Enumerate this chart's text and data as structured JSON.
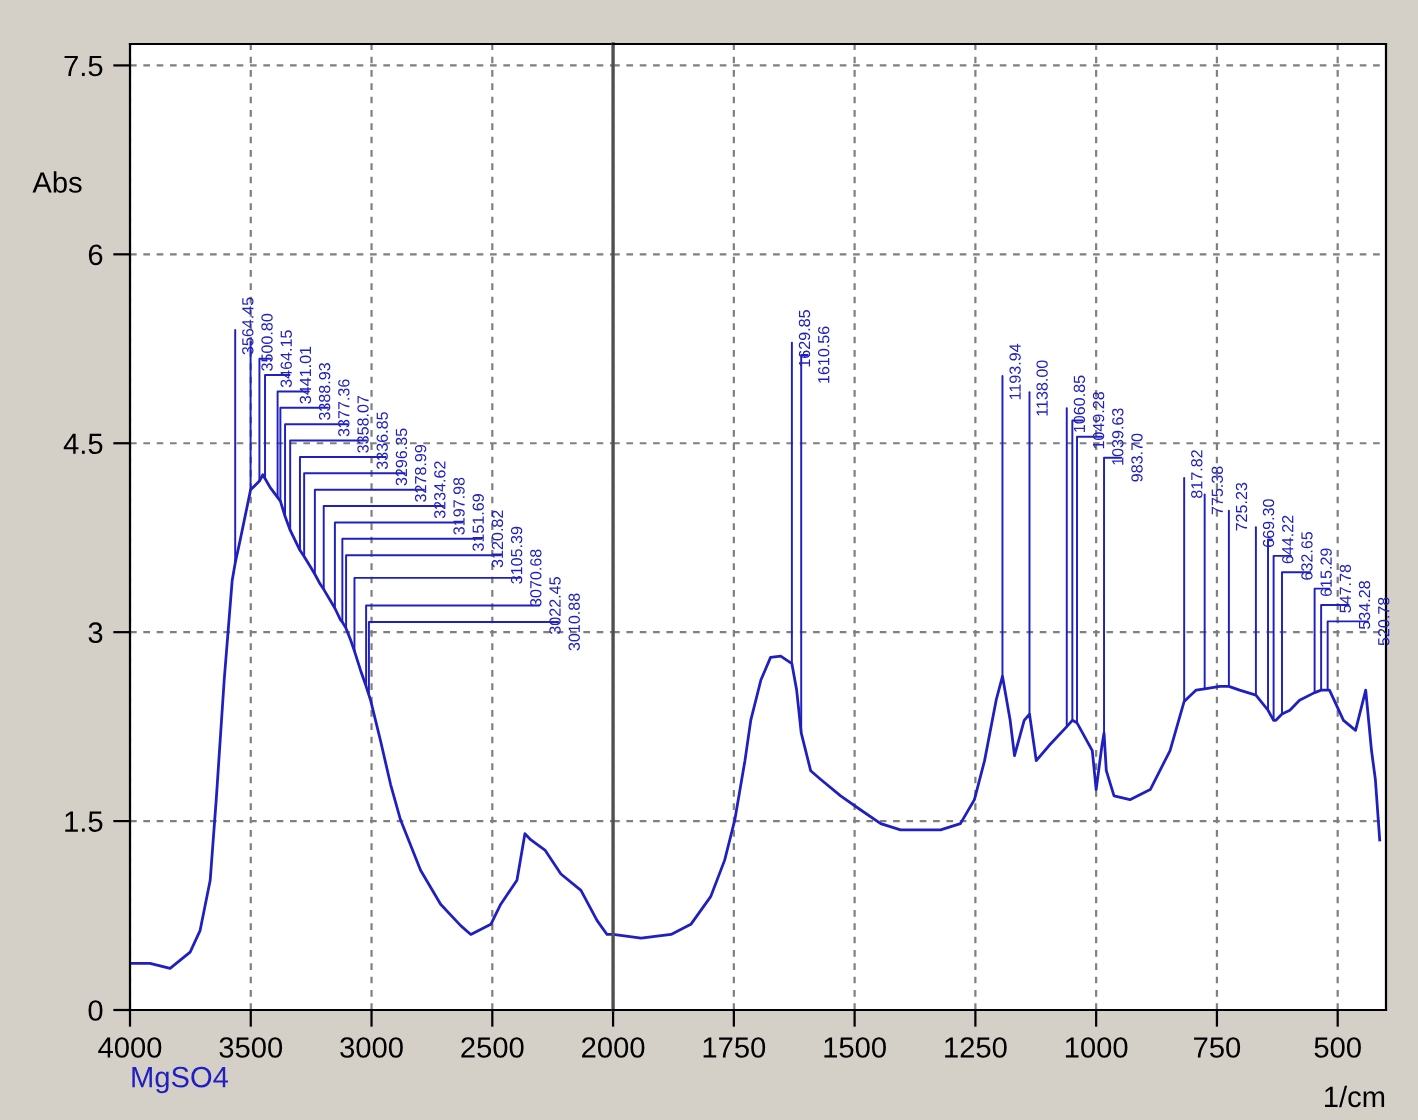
{
  "chart_data": [
    {
      "type": "line",
      "ylabel": "Abs",
      "x": [
        4000,
        3917,
        3834,
        3751,
        3710,
        3668,
        3643,
        3610,
        3577,
        3564.45,
        3544,
        3500.8,
        3464.15,
        3450,
        3441.01,
        3420,
        3388.93,
        3377.36,
        3358.07,
        3336.85,
        3296.35,
        3278.99,
        3253,
        3234.62,
        3212,
        3197.98,
        3170,
        3151.69,
        3129,
        3120.82,
        3105.39,
        3087,
        3070.68,
        3046,
        3022.45,
        3010.88,
        3004,
        2963,
        2921,
        2880,
        2797,
        2714,
        2631,
        2589,
        2506,
        2465,
        2398,
        2365,
        2340,
        2282,
        2216,
        2133,
        2066,
        2025,
        2000
      ],
      "series": [
        {
          "color": "#2020c0",
          "values": [
            0.37,
            0.37,
            0.33,
            0.46,
            0.63,
            1.03,
            1.67,
            2.62,
            3.41,
            3.55,
            3.73,
            4.13,
            4.2,
            4.25,
            4.22,
            4.15,
            4.07,
            4.04,
            3.92,
            3.81,
            3.65,
            3.6,
            3.52,
            3.46,
            3.38,
            3.34,
            3.25,
            3.19,
            3.1,
            3.08,
            3.03,
            2.94,
            2.85,
            2.7,
            2.57,
            2.5,
            2.46,
            2.14,
            1.79,
            1.51,
            1.11,
            0.84,
            0.67,
            0.6,
            0.68,
            0.84,
            1.03,
            1.4,
            1.35,
            1.27,
            1.08,
            0.95,
            0.71,
            0.6,
            0.6
          ]
        }
      ],
      "xlim": [
        4000,
        2000
      ],
      "ylim": [
        0,
        7.67
      ],
      "xticks": [
        4000,
        3500,
        3000,
        2500
      ],
      "yticks": [
        0,
        1.5,
        3,
        4.5,
        6,
        7.5
      ],
      "grid": true,
      "annotations": [
        "MgSO4",
        {
          "text": "3564.45",
          "x": 3564.45,
          "y": 3.55
        },
        {
          "text": "3500.80",
          "x": 3500.8,
          "y": 4.13
        },
        {
          "text": "3464.15",
          "x": 3464.15,
          "y": 4.2
        },
        {
          "text": "3441.01",
          "x": 3441.01,
          "y": 4.22
        },
        {
          "text": "3388.93",
          "x": 3388.93,
          "y": 4.07
        },
        {
          "text": "3377.36",
          "x": 3377.36,
          "y": 4.04
        },
        {
          "text": "3358.07",
          "x": 3358.07,
          "y": 3.92
        },
        {
          "text": "3336.85",
          "x": 3336.85,
          "y": 3.81
        },
        {
          "text": "3296.35",
          "x": 3296.35,
          "y": 3.65
        },
        {
          "text": "3278.99",
          "x": 3278.99,
          "y": 3.6
        },
        {
          "text": "3234.62",
          "x": 3234.62,
          "y": 3.46
        },
        {
          "text": "3197.98",
          "x": 3197.98,
          "y": 3.34
        },
        {
          "text": "3151.69",
          "x": 3151.69,
          "y": 3.19
        },
        {
          "text": "3120.82",
          "x": 3120.82,
          "y": 3.08
        },
        {
          "text": "3105.39",
          "x": 3105.39,
          "y": 3.03
        },
        {
          "text": "3070.68",
          "x": 3070.68,
          "y": 2.85
        },
        {
          "text": "3022.45",
          "x": 3022.45,
          "y": 2.57
        },
        {
          "text": "3010.88",
          "x": 3010.88,
          "y": 2.5
        }
      ]
    },
    {
      "type": "line",
      "xlabel": "1/cm",
      "x": [
        2000,
        1942,
        1880,
        1839,
        1798,
        1769,
        1748,
        1727,
        1715,
        1694,
        1674,
        1653,
        1629.85,
        1620,
        1610.56,
        1591,
        1570,
        1529,
        1488,
        1446,
        1405,
        1322,
        1281,
        1252,
        1231,
        1207,
        1193.94,
        1178,
        1169,
        1149,
        1138,
        1124,
        1095,
        1060.85,
        1049.28,
        1039.63,
        1008,
        1000,
        988,
        983.7,
        979,
        963,
        930,
        888,
        847,
        817.82,
        793,
        775.38,
        744,
        725.23,
        703,
        669.3,
        661,
        644.22,
        632.65,
        628,
        615.29,
        599,
        579,
        547.78,
        534.28,
        520.78,
        517,
        488,
        463,
        442,
        430,
        422,
        413
      ],
      "series": [
        {
          "color": "#2020c0",
          "values": [
            0.6,
            0.57,
            0.6,
            0.68,
            0.9,
            1.19,
            1.51,
            1.98,
            2.3,
            2.62,
            2.8,
            2.81,
            2.75,
            2.54,
            2.2,
            1.9,
            1.83,
            1.7,
            1.59,
            1.48,
            1.43,
            1.43,
            1.48,
            1.67,
            1.98,
            2.46,
            2.65,
            2.3,
            2.02,
            2.3,
            2.35,
            1.98,
            2.11,
            2.25,
            2.3,
            2.28,
            2.06,
            1.75,
            2.1,
            2.2,
            1.9,
            1.7,
            1.67,
            1.75,
            2.06,
            2.45,
            2.54,
            2.55,
            2.57,
            2.57,
            2.54,
            2.5,
            2.46,
            2.38,
            2.3,
            2.3,
            2.35,
            2.38,
            2.46,
            2.52,
            2.54,
            2.54,
            2.54,
            2.3,
            2.22,
            2.54,
            2.06,
            1.83,
            1.35
          ]
        }
      ],
      "xlim": [
        2000,
        400
      ],
      "ylim": [
        0,
        7.67
      ],
      "xticks": [
        2000,
        1750,
        1500,
        1250,
        1000,
        750,
        500
      ],
      "yticks": [
        0,
        1.5,
        3,
        4.5,
        6,
        7.5
      ],
      "tick_labels": "x",
      "grid": true,
      "annotations": [
        {
          "text": "1629.85",
          "x": 1629.85,
          "y": 2.75
        },
        {
          "text": "1610.56",
          "x": 1610.56,
          "y": 2.2
        },
        {
          "text": "1193.94",
          "x": 1193.94,
          "y": 2.65
        },
        {
          "text": "1138.00",
          "x": 1138.0,
          "y": 2.35
        },
        {
          "text": "1060.85",
          "x": 1060.85,
          "y": 2.25
        },
        {
          "text": "1049.28",
          "x": 1049.28,
          "y": 2.3
        },
        {
          "text": "1039.63",
          "x": 1039.63,
          "y": 2.28
        },
        {
          "text": "983.70",
          "x": 983.7,
          "y": 2.2
        },
        {
          "text": "817.82",
          "x": 817.82,
          "y": 2.45
        },
        {
          "text": "775.38",
          "x": 775.38,
          "y": 2.55
        },
        {
          "text": "725.23",
          "x": 725.23,
          "y": 2.57
        },
        {
          "text": "669.30",
          "x": 669.3,
          "y": 2.5
        },
        {
          "text": "644.22",
          "x": 644.22,
          "y": 2.38
        },
        {
          "text": "632.65",
          "x": 632.65,
          "y": 2.3
        },
        {
          "text": "615.29",
          "x": 615.29,
          "y": 2.35
        },
        {
          "text": "547.78",
          "x": 547.78,
          "y": 2.52
        },
        {
          "text": "534.28",
          "x": 534.28,
          "y": 2.54
        },
        {
          "text": "520.78",
          "x": 520.78,
          "y": 2.54
        }
      ]
    }
  ]
}
